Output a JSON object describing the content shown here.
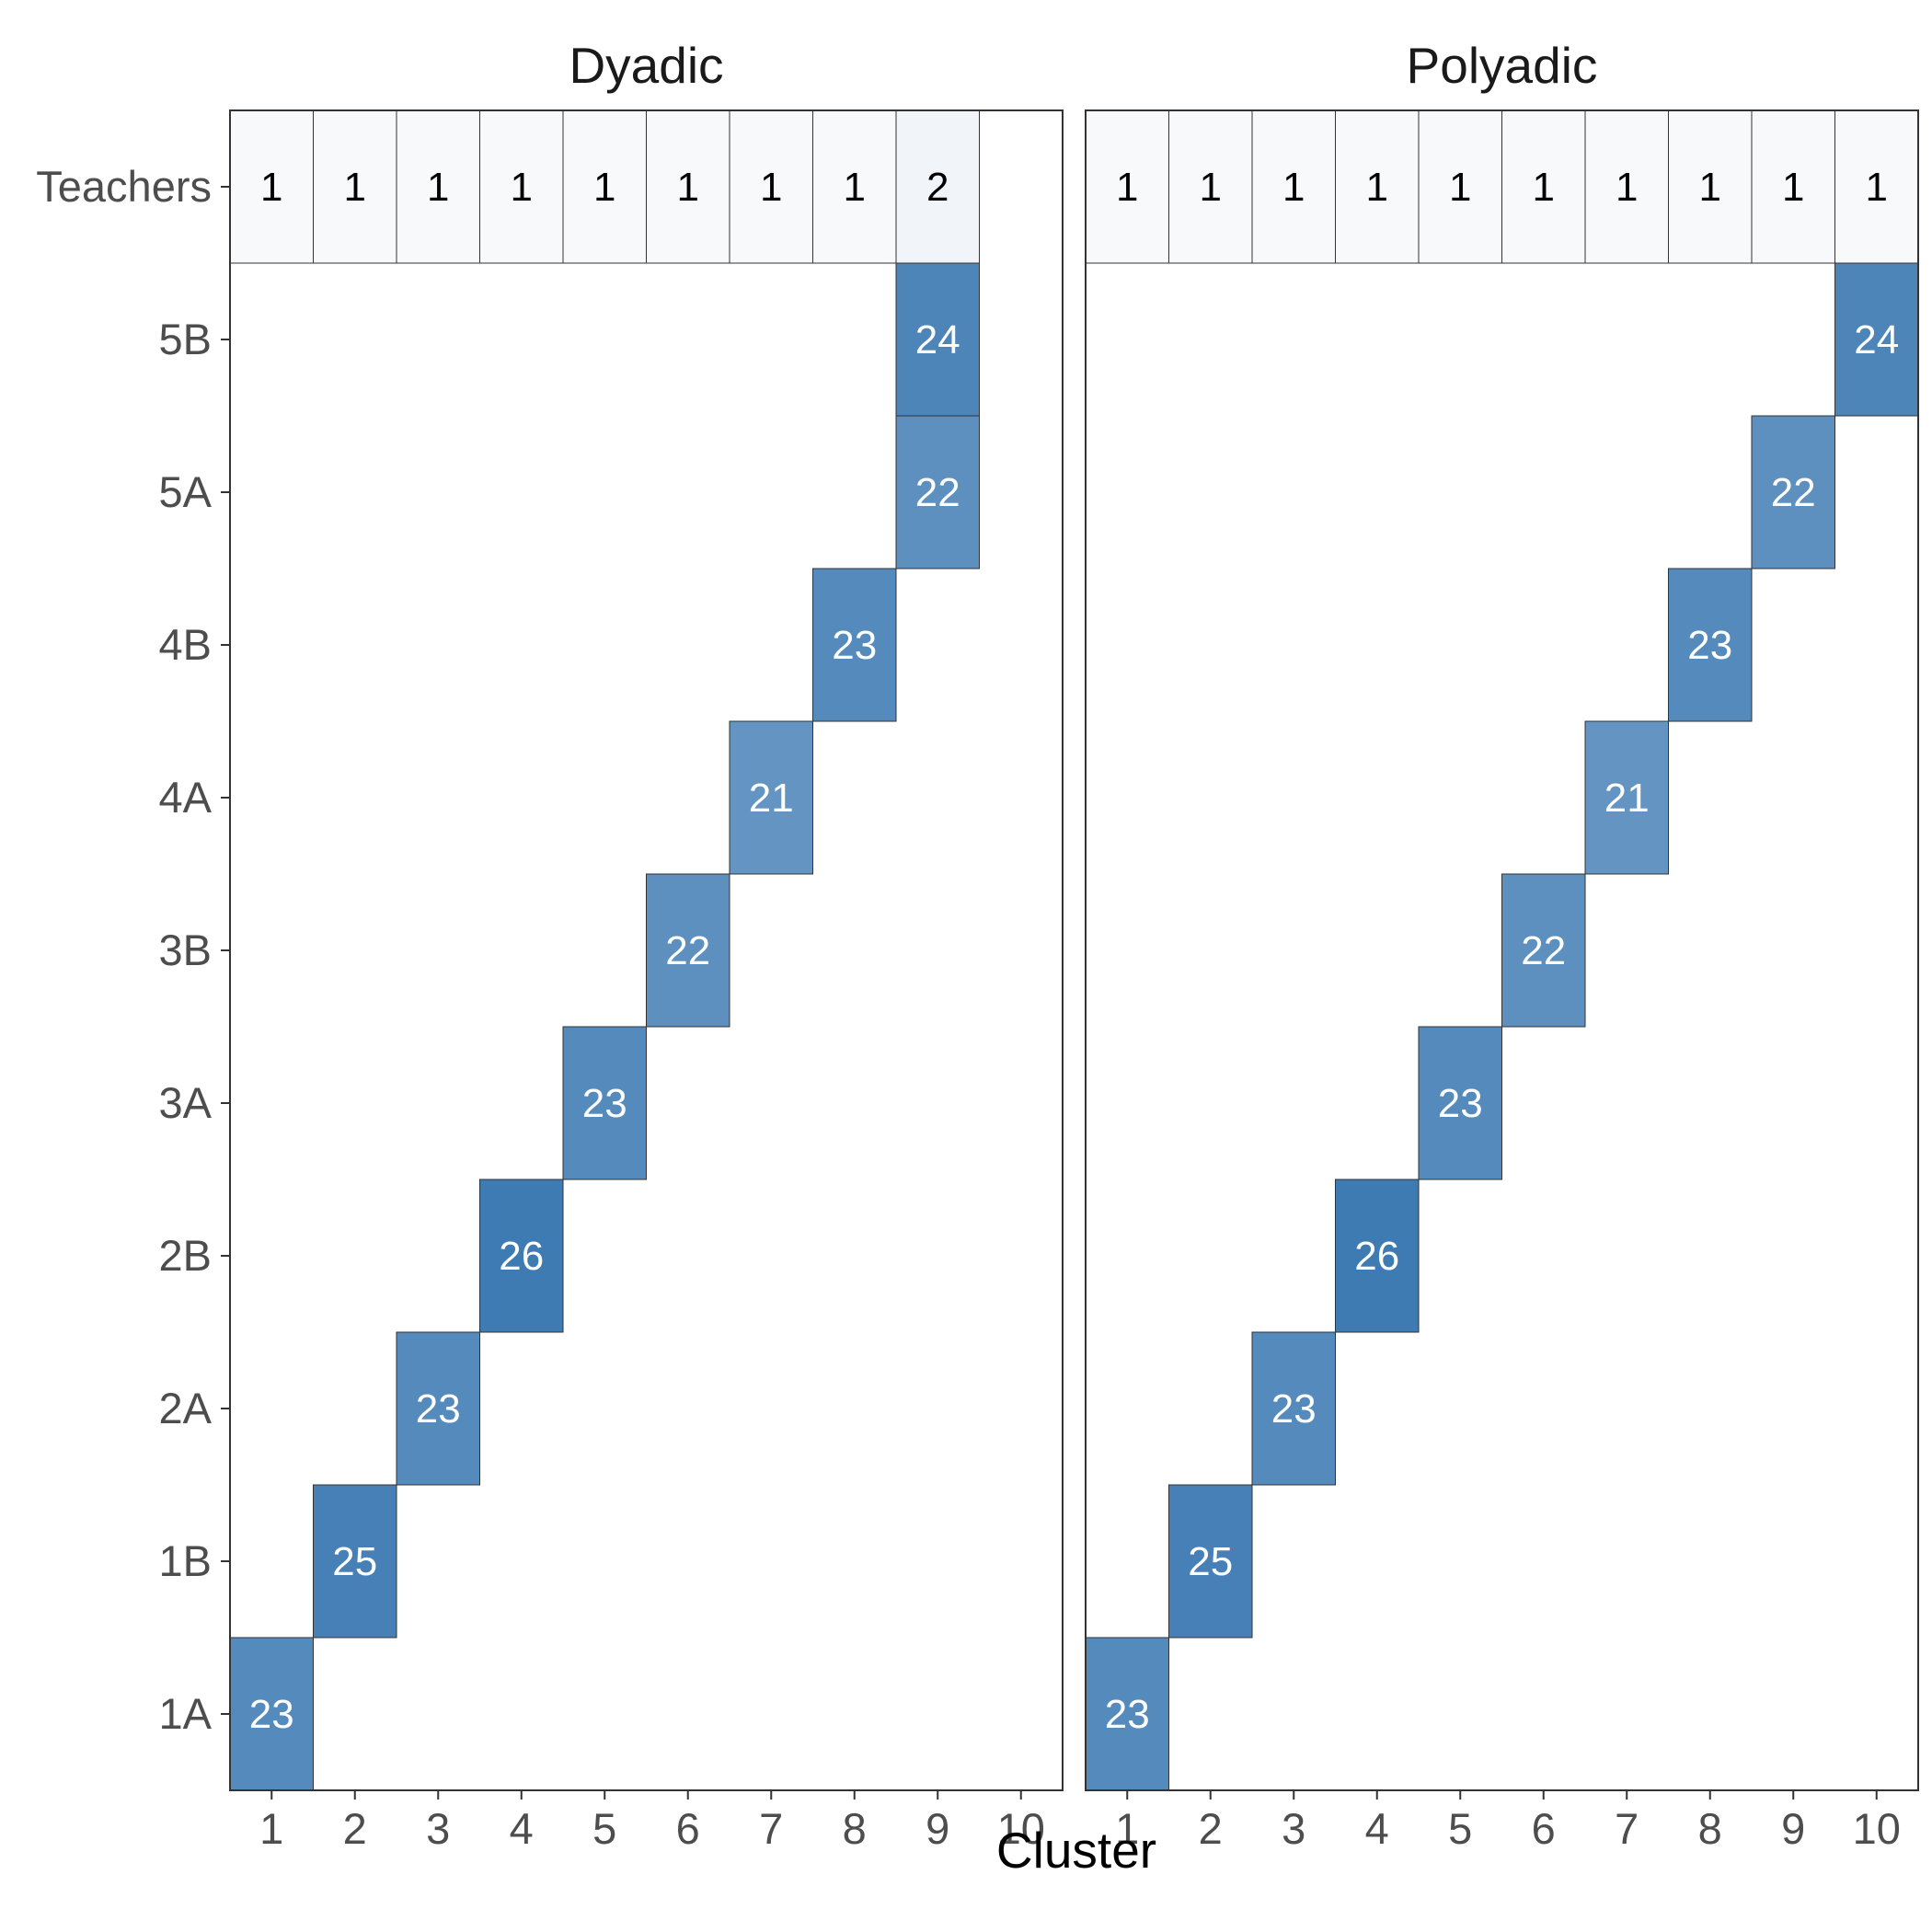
{
  "chart_data": {
    "type": "heatmap",
    "xlabel": "Cluster",
    "ylabel": "",
    "x_categories": [
      1,
      2,
      3,
      4,
      5,
      6,
      7,
      8,
      9,
      10
    ],
    "y_categories": [
      "1A",
      "1B",
      "2A",
      "2B",
      "3A",
      "3B",
      "4A",
      "4B",
      "5A",
      "5B",
      "Teachers"
    ],
    "color_scale": {
      "low": "#f8f9fb",
      "high": "#3f7bb3"
    },
    "panels": [
      {
        "title": "Dyadic",
        "cells": [
          {
            "x": 1,
            "y": "Teachers",
            "value": 1
          },
          {
            "x": 2,
            "y": "Teachers",
            "value": 1
          },
          {
            "x": 3,
            "y": "Teachers",
            "value": 1
          },
          {
            "x": 4,
            "y": "Teachers",
            "value": 1
          },
          {
            "x": 5,
            "y": "Teachers",
            "value": 1
          },
          {
            "x": 6,
            "y": "Teachers",
            "value": 1
          },
          {
            "x": 7,
            "y": "Teachers",
            "value": 1
          },
          {
            "x": 8,
            "y": "Teachers",
            "value": 1
          },
          {
            "x": 9,
            "y": "Teachers",
            "value": 2
          },
          {
            "x": 9,
            "y": "5B",
            "value": 24
          },
          {
            "x": 9,
            "y": "5A",
            "value": 22
          },
          {
            "x": 8,
            "y": "4B",
            "value": 23
          },
          {
            "x": 7,
            "y": "4A",
            "value": 21
          },
          {
            "x": 6,
            "y": "3B",
            "value": 22
          },
          {
            "x": 5,
            "y": "3A",
            "value": 23
          },
          {
            "x": 4,
            "y": "2B",
            "value": 26
          },
          {
            "x": 3,
            "y": "2A",
            "value": 23
          },
          {
            "x": 2,
            "y": "1B",
            "value": 25
          },
          {
            "x": 1,
            "y": "1A",
            "value": 23
          }
        ]
      },
      {
        "title": "Polyadic",
        "cells": [
          {
            "x": 1,
            "y": "Teachers",
            "value": 1
          },
          {
            "x": 2,
            "y": "Teachers",
            "value": 1
          },
          {
            "x": 3,
            "y": "Teachers",
            "value": 1
          },
          {
            "x": 4,
            "y": "Teachers",
            "value": 1
          },
          {
            "x": 5,
            "y": "Teachers",
            "value": 1
          },
          {
            "x": 6,
            "y": "Teachers",
            "value": 1
          },
          {
            "x": 7,
            "y": "Teachers",
            "value": 1
          },
          {
            "x": 8,
            "y": "Teachers",
            "value": 1
          },
          {
            "x": 9,
            "y": "Teachers",
            "value": 1
          },
          {
            "x": 10,
            "y": "Teachers",
            "value": 1
          },
          {
            "x": 10,
            "y": "5B",
            "value": 24
          },
          {
            "x": 9,
            "y": "5A",
            "value": 22
          },
          {
            "x": 8,
            "y": "4B",
            "value": 23
          },
          {
            "x": 7,
            "y": "4A",
            "value": 21
          },
          {
            "x": 6,
            "y": "3B",
            "value": 22
          },
          {
            "x": 5,
            "y": "3A",
            "value": 23
          },
          {
            "x": 4,
            "y": "2B",
            "value": 26
          },
          {
            "x": 3,
            "y": "2A",
            "value": 23
          },
          {
            "x": 2,
            "y": "1B",
            "value": 25
          },
          {
            "x": 1,
            "y": "1A",
            "value": 23
          }
        ]
      }
    ]
  }
}
